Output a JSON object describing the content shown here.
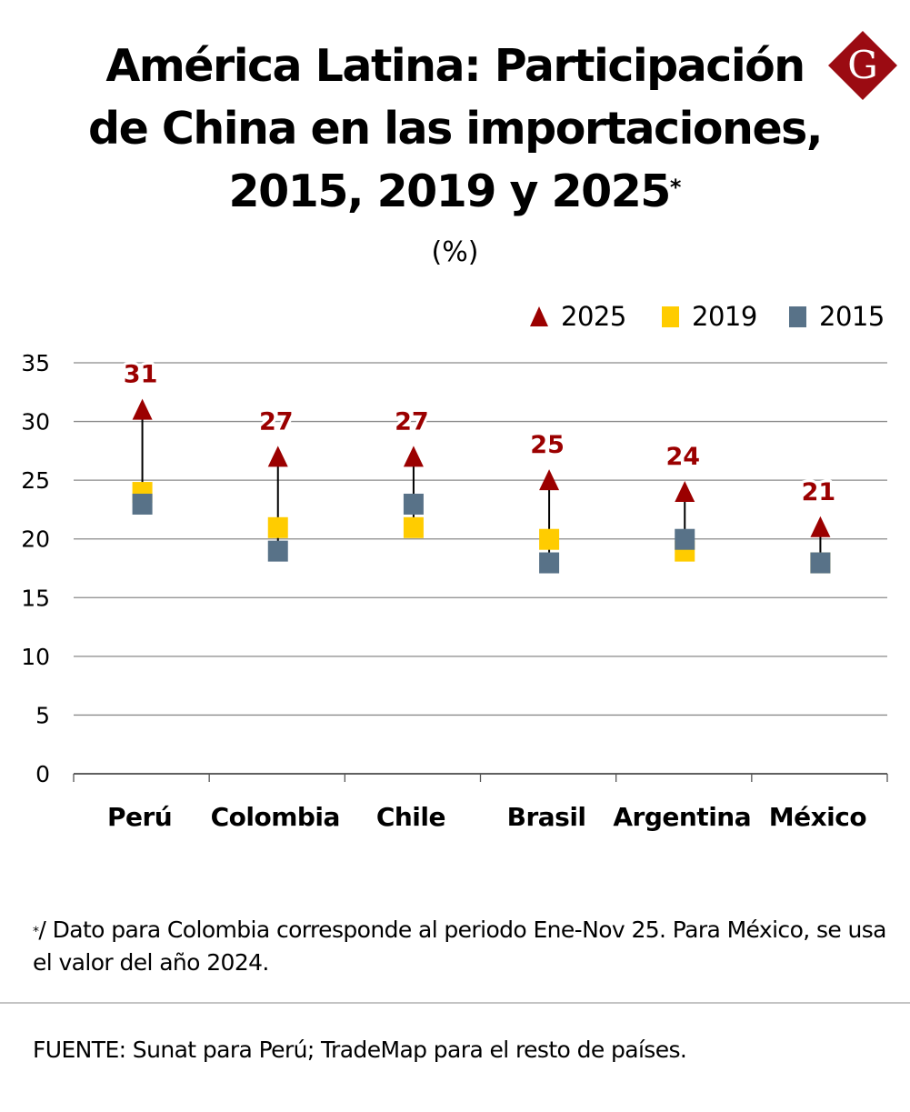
{
  "header": {
    "title_lines": [
      "América Latina: Participación",
      "de China en las importaciones,",
      "2015, 2019 y 2025"
    ],
    "title_mark": "*",
    "unit": "(%)",
    "logo_letter": "G",
    "logo_color": "#9b0b12"
  },
  "colors": {
    "s2025": "#9b0000",
    "s2019": "#ffcc00",
    "s2015": "#587288",
    "grid": "#8a8a8a",
    "connector": "#000000"
  },
  "chart_data": {
    "type": "scatter",
    "title": "América Latina: Participación de China en las importaciones, 2015, 2019 y 2025*",
    "subtitle": "(%)",
    "xlabel": "",
    "ylabel": "",
    "categories": [
      "Perú",
      "Colombia",
      "Chile",
      "Brasil",
      "Argentina",
      "México"
    ],
    "ylim": [
      0,
      35
    ],
    "yticks": [
      0,
      5,
      10,
      15,
      20,
      25,
      30,
      35
    ],
    "grid": true,
    "legend_position": "top-right",
    "series": [
      {
        "name": "2025",
        "marker": "triangle",
        "values": [
          31,
          27,
          27,
          25,
          24,
          21
        ],
        "data_labels": [
          "31",
          "27",
          "27",
          "25",
          "24",
          "21"
        ]
      },
      {
        "name": "2019",
        "marker": "square",
        "values": [
          24,
          21,
          21,
          20,
          19,
          18
        ]
      },
      {
        "name": "2015",
        "marker": "square",
        "values": [
          23,
          19,
          23,
          18,
          20,
          18
        ]
      }
    ]
  },
  "legend": [
    {
      "label": "2025",
      "shape": "triangle",
      "color": "#9b0000"
    },
    {
      "label": "2019",
      "shape": "square",
      "color": "#ffcc00"
    },
    {
      "label": "2015",
      "shape": "square",
      "color": "#587288"
    }
  ],
  "footer": {
    "note_mark": "*",
    "note_text": "/ Dato para Colombia corresponde al periodo Ene-Nov 25. Para México, se usa el valor del año 2024.",
    "source": "FUENTE: Sunat para Perú; TradeMap para el resto de países."
  }
}
